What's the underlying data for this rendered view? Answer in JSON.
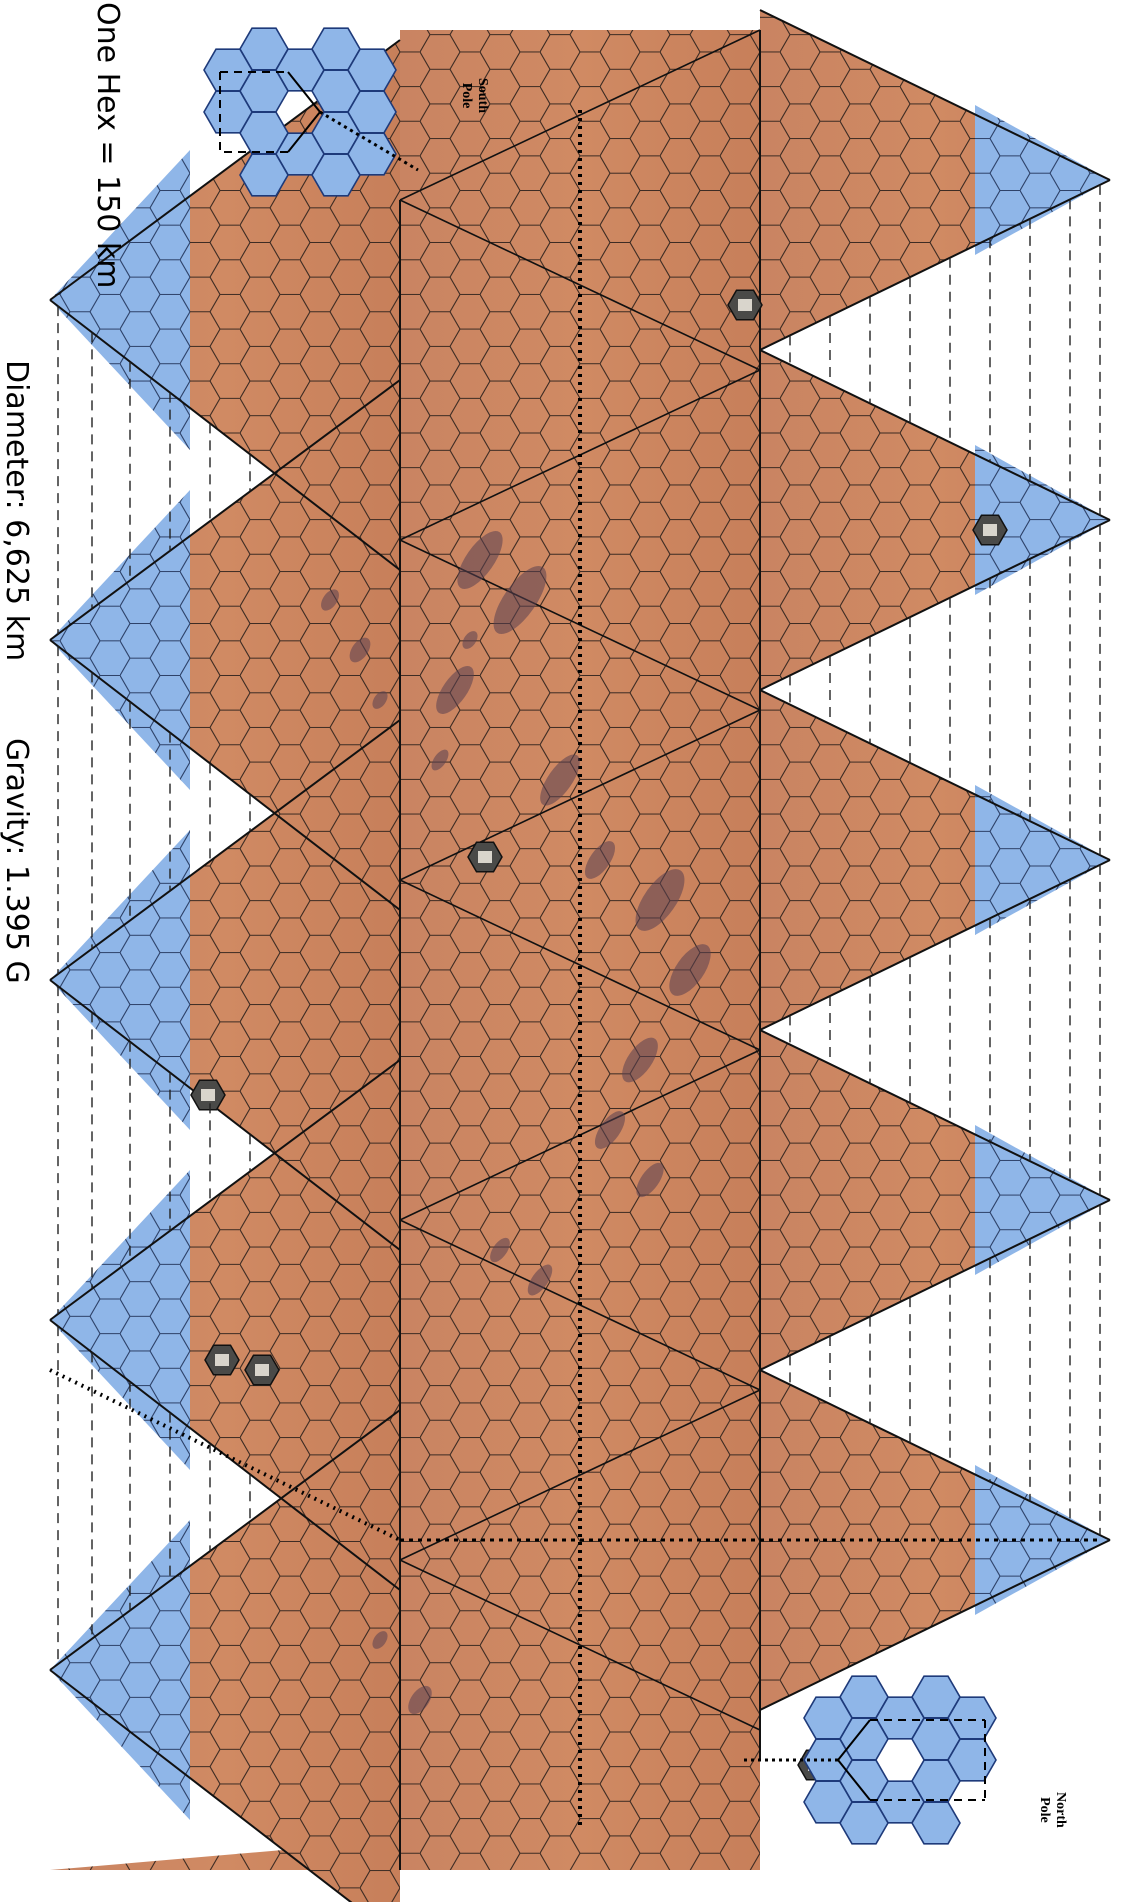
{
  "map": {
    "scale_label": "One Hex = 150 km",
    "diameter_label": "Diameter: 6,625 km",
    "gravity_label": "Gravity: 1.395 G",
    "south_pole_label_line1": "South",
    "south_pole_label_line2": "Pole",
    "north_pole_label_line1": "North",
    "north_pole_label_line2": "Pole"
  },
  "colors": {
    "desert": "#c8825c",
    "ice": "#8fb6e8",
    "grid_line": "#3a2a22",
    "dark_terrain": "#5a4050"
  },
  "icons": {
    "settlement": "settlement-icon",
    "south_cap": "south-pole-hex-cap-icon",
    "north_cap": "north-pole-hex-cap-icon"
  }
}
